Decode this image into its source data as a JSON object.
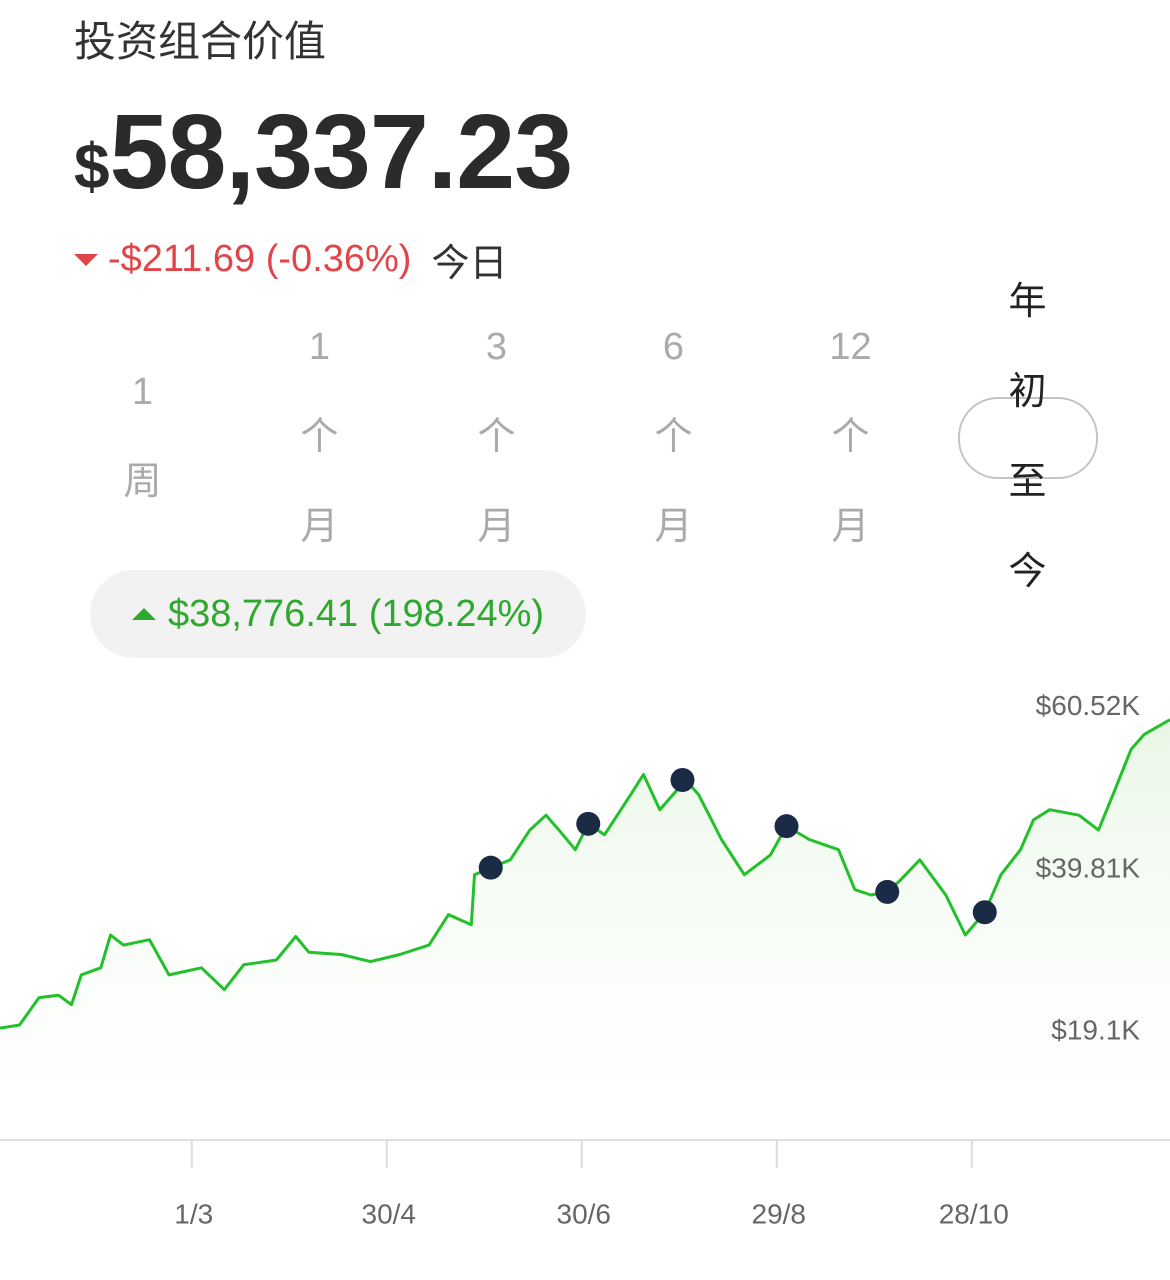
{
  "header": {
    "title": "投资组合价值",
    "currency": "$",
    "amount": "58,337.23",
    "change": "-$211.69 (-0.36%)",
    "change_period": "今日"
  },
  "ranges": [
    "1周",
    "1个月",
    "3个月",
    "6个月",
    "12个月",
    "年初至今"
  ],
  "selected_range": 5,
  "period_change": "$38,776.41 (198.24%)",
  "chart_data": {
    "type": "line",
    "x": [
      1,
      7,
      13,
      19,
      23,
      26,
      32,
      35,
      39,
      47,
      53,
      63,
      70,
      76,
      86,
      92,
      96,
      106,
      115,
      124,
      133,
      139,
      146,
      147,
      152,
      158,
      164,
      169,
      173,
      178,
      182,
      187,
      195,
      199,
      204,
      212,
      216,
      223,
      230,
      238,
      243,
      250,
      259,
      264,
      269,
      274,
      278,
      284,
      292,
      298,
      304,
      309,
      315,
      319,
      324,
      333,
      339,
      344,
      349,
      353,
      361
    ],
    "series": [
      {
        "color": "#22c02a",
        "values": [
          19600,
          20000,
          23500,
          23800,
          22600,
          26400,
          27300,
          31500,
          30200,
          30900,
          26400,
          27300,
          24500,
          27700,
          28300,
          31300,
          29300,
          29000,
          28100,
          29000,
          30200,
          34100,
          32800,
          39200,
          40100,
          41100,
          44900,
          46800,
          44900,
          42400,
          45700,
          44300,
          49400,
          52000,
          47500,
          51300,
          49400,
          43700,
          39200,
          41700,
          45400,
          43700,
          42400,
          37300,
          36600,
          37000,
          38500,
          41100,
          36600,
          31500,
          34400,
          39200,
          42400,
          46200,
          47500,
          46800,
          44900,
          50000,
          55200,
          57100,
          59000
        ]
      }
    ],
    "markers": {
      "color": "#1c2b45",
      "x": [
        152,
        182,
        211,
        243,
        274,
        304
      ],
      "values": [
        40100,
        45700,
        51300,
        45400,
        37000,
        34400
      ]
    },
    "xlim": [
      1,
      361
    ],
    "xticks": [
      {
        "value": 60,
        "label": "1/3"
      },
      {
        "value": 120,
        "label": "30/4"
      },
      {
        "value": 180,
        "label": "30/6"
      },
      {
        "value": 240,
        "label": "29/8"
      },
      {
        "value": 300,
        "label": "28/10"
      }
    ],
    "ylim": [
      5300,
      62800
    ],
    "yticks": [
      {
        "value": 19100,
        "label": "$19.1K"
      },
      {
        "value": 39810,
        "label": "$39.81K"
      },
      {
        "value": 60520,
        "label": "$60.52K"
      }
    ]
  }
}
